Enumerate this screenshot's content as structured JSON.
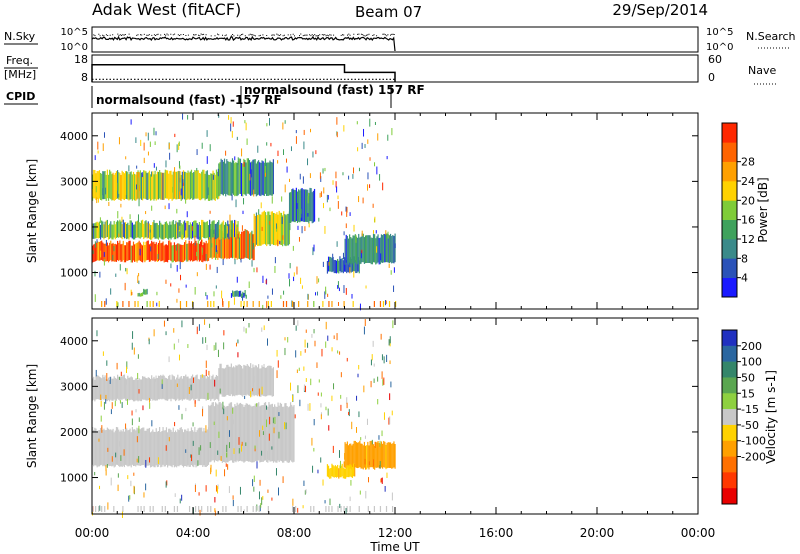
{
  "header": {
    "title": "Adak West (fitACF)",
    "beam": "Beam 07",
    "date": "29/Sep/2014"
  },
  "params_panels": {
    "nsky_label": "N.Sky",
    "nsky_ticks": [
      "10^5",
      "10^0"
    ],
    "nsearch_label": "N.Search",
    "freq_label_line1": "Freq.",
    "freq_label_line2": "[MHz]",
    "freq_ticks": [
      "18",
      "8"
    ],
    "nave_label": "Nave",
    "nave_ticks": [
      "60",
      "0"
    ],
    "cpid_label": "CPID",
    "cpid_segments": [
      {
        "label": "normalsound (fast) -157 RF",
        "start_h": 0,
        "end_h": 6
      },
      {
        "label": "normalsound (fast) 157 RF",
        "start_h": 6,
        "end_h": 12
      }
    ],
    "freq_values": [
      {
        "start_h": 0,
        "end_h": 10,
        "value": 16
      },
      {
        "start_h": 10,
        "end_h": 12,
        "value": 12
      }
    ],
    "nave_values": [
      {
        "start_h": 0,
        "end_h": 12,
        "value": 2
      }
    ]
  },
  "axes": {
    "x_title": "Time UT",
    "x_tick_labels": [
      "00:00",
      "04:00",
      "08:00",
      "12:00",
      "16:00",
      "20:00",
      "00:00"
    ],
    "x_range_h": [
      0,
      24
    ],
    "y_title": "Slant Range [km]",
    "y_tick_labels": [
      "1000",
      "2000",
      "3000",
      "4000"
    ],
    "y_range_km": [
      200,
      4500
    ]
  },
  "colorbars": {
    "power": {
      "title": "Power [dB]",
      "labels": [
        "4",
        "8",
        "12",
        "16",
        "20",
        "24",
        "28"
      ],
      "colors": [
        "#1a1aff",
        "#2a52b8",
        "#3a8a8a",
        "#3fa25c",
        "#7fcc38",
        "#ffd200",
        "#ffa000",
        "#ff6400",
        "#ff2800"
      ]
    },
    "velocity": {
      "title": "Velocity [m s-1]",
      "labels": [
        "200",
        "100",
        "50",
        "15",
        "-15",
        "-50",
        "-100",
        "-200"
      ],
      "colors": [
        "#2030c0",
        "#2a66a0",
        "#34866a",
        "#5aa650",
        "#8ed040",
        "#c8c8c8",
        "#ffd200",
        "#ffa000",
        "#ff7000",
        "#ff3800",
        "#e80000"
      ]
    }
  },
  "chart_data": [
    {
      "type": "heatmap",
      "quantity": "Power",
      "units": "dB",
      "x_range_h": [
        0,
        24
      ],
      "y_range_km": [
        200,
        4500
      ],
      "color_range": [
        0,
        32
      ],
      "regions": [
        {
          "t_start": 0.0,
          "t_end": 4.6,
          "r_low": 1250,
          "r_high": 1650,
          "value": 28
        },
        {
          "t_start": 4.6,
          "t_end": 6.4,
          "r_low": 1300,
          "r_high": 1900,
          "value": 26
        },
        {
          "t_start": 6.4,
          "t_end": 7.8,
          "r_low": 1600,
          "r_high": 2300,
          "value": 18
        },
        {
          "t_start": 7.8,
          "t_end": 8.8,
          "r_low": 2100,
          "r_high": 2800,
          "value": 10
        },
        {
          "t_start": 0.0,
          "t_end": 5.8,
          "r_low": 1750,
          "r_high": 2100,
          "value": 16
        },
        {
          "t_start": 0.0,
          "t_end": 5.0,
          "r_low": 2600,
          "r_high": 3200,
          "value": 18
        },
        {
          "t_start": 5.0,
          "t_end": 7.2,
          "r_low": 2700,
          "r_high": 3450,
          "value": 12
        },
        {
          "t_start": 9.3,
          "t_end": 10.6,
          "r_low": 1000,
          "r_high": 1300,
          "value": 8
        },
        {
          "t_start": 10.0,
          "t_end": 12.0,
          "r_low": 1200,
          "r_high": 1800,
          "value": 10
        },
        {
          "t_start": 1.8,
          "t_end": 2.2,
          "r_low": 500,
          "r_high": 600,
          "value": 14
        },
        {
          "t_start": 5.5,
          "t_end": 6.1,
          "r_low": 450,
          "r_high": 560,
          "value": 12
        }
      ]
    },
    {
      "type": "heatmap",
      "quantity": "Velocity",
      "units": "m s-1",
      "x_range_h": [
        0,
        24
      ],
      "y_range_km": [
        200,
        4500
      ],
      "color_range": [
        -250,
        250
      ],
      "regions": [
        {
          "t_start": 0.0,
          "t_end": 4.6,
          "r_low": 1250,
          "r_high": 2050,
          "value": 0
        },
        {
          "t_start": 4.6,
          "t_end": 8.0,
          "r_low": 1350,
          "r_high": 2600,
          "value": 0
        },
        {
          "t_start": 0.0,
          "t_end": 5.0,
          "r_low": 2700,
          "r_high": 3200,
          "value": 0
        },
        {
          "t_start": 5.0,
          "t_end": 7.2,
          "r_low": 2800,
          "r_high": 3450,
          "value": 0
        },
        {
          "t_start": 10.0,
          "t_end": 12.0,
          "r_low": 1200,
          "r_high": 1750,
          "value": -80
        },
        {
          "t_start": 9.3,
          "t_end": 10.4,
          "r_low": 1000,
          "r_high": 1250,
          "value": -60
        }
      ]
    }
  ]
}
